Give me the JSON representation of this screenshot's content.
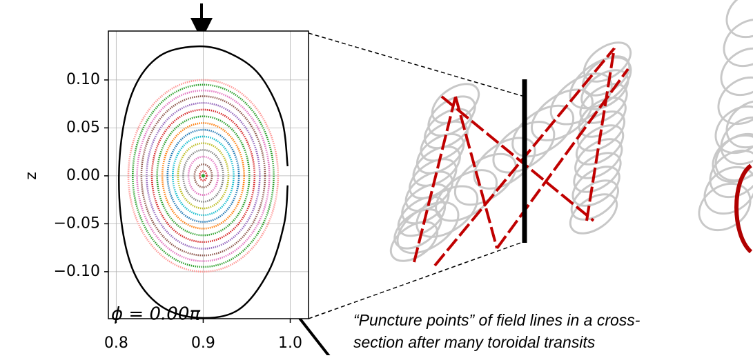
{
  "chart_data": {
    "type": "poincare",
    "y_label": "z",
    "annotation": "ϕ = 0.00π",
    "caption": [
      "“Puncture points” of field lines in a cross-",
      "section after many toroidal transits"
    ],
    "xlim": [
      0.791,
      1.021
    ],
    "ylim": [
      -0.149,
      0.151
    ],
    "xticks": [
      {
        "value": 0.8,
        "label": "0.8"
      },
      {
        "value": 0.9,
        "label": "0.9"
      },
      {
        "value": 1.0,
        "label": "1.0"
      }
    ],
    "yticks": [
      {
        "value": 0.1,
        "label": "0.10"
      },
      {
        "value": 0.05,
        "label": "0.05"
      },
      {
        "value": 0,
        "label": "0.00"
      },
      {
        "value": -0.05,
        "label": "−0.05"
      },
      {
        "value": -0.1,
        "label": "−0.10"
      }
    ],
    "grid": true,
    "center": {
      "x": 0.9,
      "z": 0.0
    },
    "rings": [
      {
        "color": "#d62728",
        "rx": 0.004,
        "rz": 0.005
      },
      {
        "color": "#8c564b",
        "rx": 0.01,
        "rz": 0.012
      },
      {
        "color": "#e377c2",
        "rx": 0.017,
        "rz": 0.02
      },
      {
        "color": "#7f7f7f",
        "rx": 0.023,
        "rz": 0.027
      },
      {
        "color": "#bcbd22",
        "rx": 0.029,
        "rz": 0.034
      },
      {
        "color": "#17becf",
        "rx": 0.035,
        "rz": 0.041
      },
      {
        "color": "#1f77b4",
        "rx": 0.041,
        "rz": 0.048
      },
      {
        "color": "#ff7f0e",
        "rx": 0.047,
        "rz": 0.055
      },
      {
        "color": "#2ca02c",
        "rx": 0.053,
        "rz": 0.062
      },
      {
        "color": "#d62728",
        "rx": 0.059,
        "rz": 0.069
      },
      {
        "color": "#9467bd",
        "rx": 0.065,
        "rz": 0.076
      },
      {
        "color": "#8c564b",
        "rx": 0.071,
        "rz": 0.083
      },
      {
        "color": "#e377c2",
        "rx": 0.076,
        "rz": 0.089
      },
      {
        "color": "#2ca02c",
        "rx": 0.081,
        "rz": 0.095
      },
      {
        "color": "#ff9896",
        "rx": 0.086,
        "rz": 0.1
      }
    ],
    "boundary": {
      "color": "#000000",
      "x": [
        0.997,
        0.99,
        0.965,
        0.93,
        0.893,
        0.85,
        0.82,
        0.805,
        0.805,
        0.82,
        0.85,
        0.893,
        0.94,
        0.975,
        0.993,
        0.997
      ],
      "z": [
        0.01,
        0.06,
        0.105,
        0.128,
        0.135,
        0.125,
        0.09,
        0.03,
        -0.04,
        -0.1,
        -0.135,
        -0.148,
        -0.14,
        -0.1,
        -0.05,
        -0.01
      ]
    }
  }
}
